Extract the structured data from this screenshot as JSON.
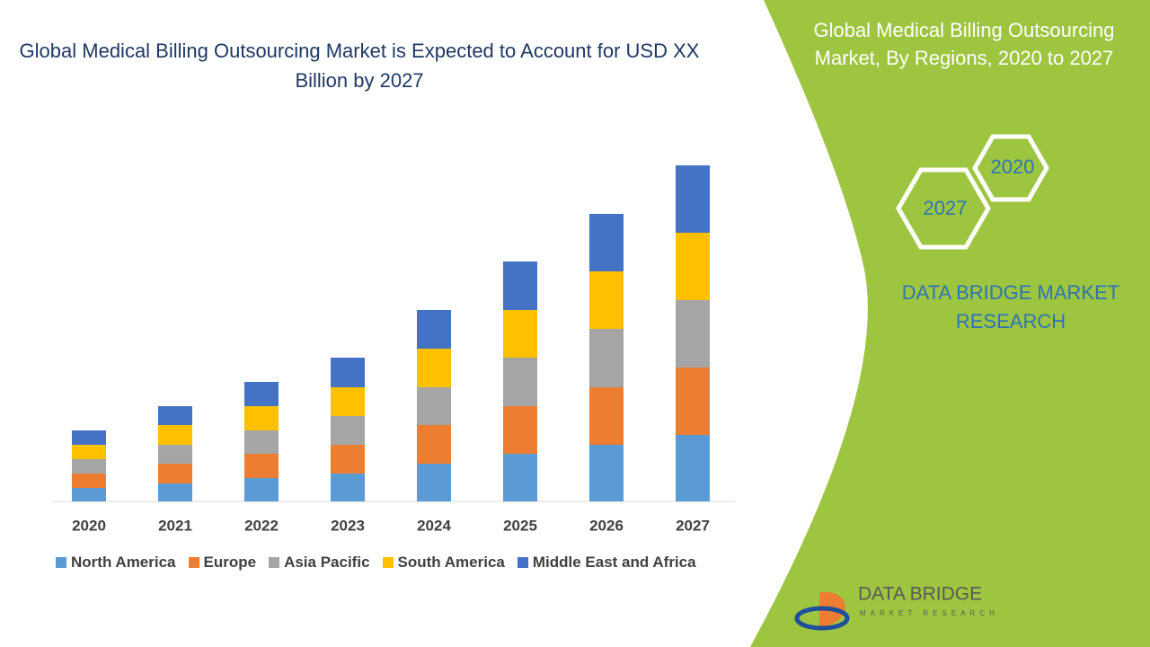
{
  "chart_data": {
    "type": "bar",
    "stacked": true,
    "title": "Global Medical Billing Outsourcing Market is Expected to Account for USD XX Billion by 2027",
    "categories": [
      "2020",
      "2021",
      "2022",
      "2023",
      "2024",
      "2025",
      "2026",
      "2027"
    ],
    "series": [
      {
        "name": "North America",
        "color": "#5b9bd5",
        "values": [
          1.5,
          2.0,
          2.6,
          3.1,
          4.2,
          5.3,
          6.3,
          7.4
        ]
      },
      {
        "name": "Europe",
        "color": "#ed7d31",
        "values": [
          1.6,
          2.2,
          2.7,
          3.2,
          4.3,
          5.3,
          6.4,
          7.5
        ]
      },
      {
        "name": "Asia Pacific",
        "color": "#a5a5a5",
        "values": [
          1.6,
          2.1,
          2.6,
          3.2,
          4.2,
          5.4,
          6.5,
          7.5
        ]
      },
      {
        "name": "South America",
        "color": "#ffc000",
        "values": [
          1.6,
          2.2,
          2.7,
          3.2,
          4.3,
          5.3,
          6.4,
          7.5
        ]
      },
      {
        "name": "Middle East and Africa",
        "color": "#4472c4",
        "values": [
          1.6,
          2.1,
          2.7,
          3.3,
          4.3,
          5.4,
          6.4,
          7.5
        ]
      }
    ],
    "ylim": [
      0,
      40
    ],
    "legend": "bottom"
  },
  "panel": {
    "title": "Global Medical Billing Outsourcing Market, By Regions, 2020 to 2027",
    "hexagons": [
      "2020",
      "2027"
    ],
    "brand": "DATA BRIDGE MARKET RESEARCH",
    "logo": {
      "name": "DATA BRIDGE",
      "tagline": "MARKET RESEARCH"
    }
  }
}
